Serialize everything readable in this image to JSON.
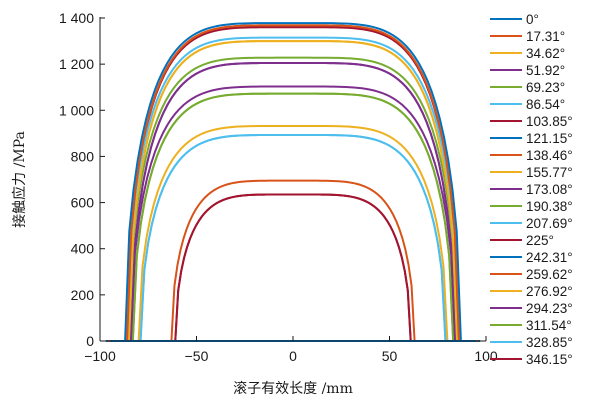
{
  "chart_data": {
    "type": "line",
    "title": "",
    "xlabel": "滚子有效长度 /mm",
    "ylabel": "接触应力 /MPa",
    "xlim": [
      -100,
      100
    ],
    "ylim": [
      0,
      1400
    ],
    "xticks": [
      -100,
      -50,
      0,
      50,
      100
    ],
    "xtick_labels": [
      "−100",
      "−50",
      "0",
      "50",
      "100"
    ],
    "yticks": [
      0,
      200,
      400,
      600,
      800,
      1000,
      1200,
      1400
    ],
    "ytick_labels": [
      "0",
      "200",
      "400",
      "600",
      "800",
      "1 000",
      "1 200",
      "1 400"
    ],
    "grid": false,
    "legend_position": "right",
    "series": [
      {
        "name": "0°",
        "color": "#0072BD",
        "peak": 0,
        "half_width": 85
      },
      {
        "name": "17.31°",
        "color": "#D95319",
        "peak": 1368,
        "half_width": 86
      },
      {
        "name": "34.62°",
        "color": "#EDB120",
        "peak": 1300,
        "half_width": 85
      },
      {
        "name": "51.92°",
        "color": "#7E2F8E",
        "peak": 1205,
        "half_width": 84
      },
      {
        "name": "69.23°",
        "color": "#77AC30",
        "peak": 1072,
        "half_width": 83
      },
      {
        "name": "86.54°",
        "color": "#4DBEEE",
        "peak": 893,
        "half_width": 79
      },
      {
        "name": "103.85°",
        "color": "#A2142F",
        "peak": 635,
        "half_width": 61
      },
      {
        "name": "121.15°",
        "color": "#0072BD",
        "peak": 1378,
        "half_width": 87
      },
      {
        "name": "138.46°",
        "color": "#D95319",
        "peak": 695,
        "half_width": 63
      },
      {
        "name": "155.77°",
        "color": "#EDB120",
        "peak": 932,
        "half_width": 80
      },
      {
        "name": "173.08°",
        "color": "#7E2F8E",
        "peak": 1103,
        "half_width": 84
      },
      {
        "name": "190.38°",
        "color": "#77AC30",
        "peak": 1228,
        "half_width": 85
      },
      {
        "name": "207.69°",
        "color": "#4DBEEE",
        "peak": 1315,
        "half_width": 86
      },
      {
        "name": "225°",
        "color": "#A2142F",
        "peak": 1360,
        "half_width": 86
      },
      {
        "name": "242.31°",
        "color": "#0072BD",
        "peak": 0,
        "half_width": 85
      },
      {
        "name": "259.62°",
        "color": "#D95319",
        "peak": 1368,
        "half_width": 86
      },
      {
        "name": "276.92°",
        "color": "#EDB120",
        "peak": 1300,
        "half_width": 85
      },
      {
        "name": "294.23°",
        "color": "#7E2F8E",
        "peak": 1205,
        "half_width": 84
      },
      {
        "name": "311.54°",
        "color": "#77AC30",
        "peak": 1072,
        "half_width": 83
      },
      {
        "name": "328.85°",
        "color": "#4DBEEE",
        "peak": 893,
        "half_width": 79
      },
      {
        "name": "346.15°",
        "color": "#A2142F",
        "peak": 635,
        "half_width": 61
      }
    ]
  }
}
